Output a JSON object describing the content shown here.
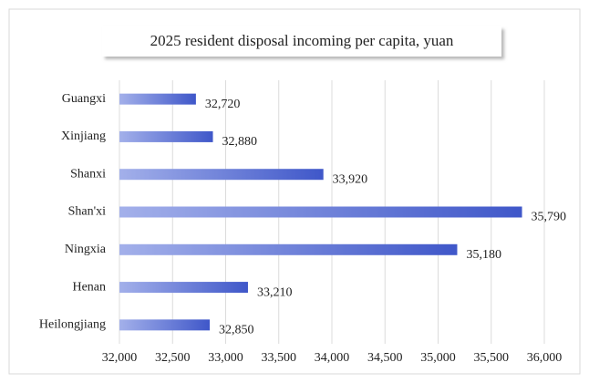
{
  "chart_data": {
    "type": "bar",
    "orientation": "horizontal",
    "title": "2025  resident disposal incoming per capita, yuan",
    "categories": [
      "Guangxi",
      "Xinjiang",
      "Shanxi",
      "Shan'xi",
      "Ningxia",
      "Henan",
      "Heilongjiang"
    ],
    "values": [
      32720,
      32880,
      33920,
      35790,
      35180,
      33210,
      32850
    ],
    "value_labels": [
      "32,720",
      "32,880",
      "33,920",
      "35,790",
      "35,180",
      "33,210",
      "32,850"
    ],
    "color": "#3f57c9",
    "xlim": [
      32000,
      36000
    ],
    "xticks": [
      {
        "value": 32000,
        "label": "32,000"
      },
      {
        "value": 32500,
        "label": "32,500"
      },
      {
        "value": 33000,
        "label": "33,000"
      },
      {
        "value": 33500,
        "label": "33,500"
      },
      {
        "value": 34000,
        "label": "34,000"
      },
      {
        "value": 34500,
        "label": "34,500"
      },
      {
        "value": 35000,
        "label": "35,000"
      },
      {
        "value": 35500,
        "label": "35,500"
      },
      {
        "value": 36000,
        "label": "36,000"
      }
    ],
    "grid": true
  }
}
